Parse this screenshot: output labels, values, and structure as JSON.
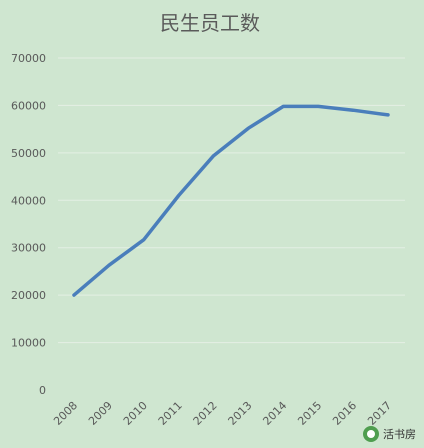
{
  "chart_data": {
    "type": "line",
    "title": "民生员工数",
    "xlabel": "",
    "ylabel": "",
    "categories": [
      "2008",
      "2009",
      "2010",
      "2011",
      "2012",
      "2013",
      "2014",
      "2015",
      "2016",
      "2017"
    ],
    "series": [
      {
        "values": [
          20000,
          26300,
          31700,
          41000,
          49400,
          55200,
          59800,
          59800,
          59000,
          58000
        ]
      }
    ],
    "ylim": [
      0,
      70000
    ],
    "yticks": [
      "0",
      "10000",
      "20000",
      "30000",
      "40000",
      "50000",
      "60000",
      "70000"
    ],
    "grid": true,
    "line_color": "#4a7ebb"
  },
  "watermark": {
    "text": "活书房"
  }
}
